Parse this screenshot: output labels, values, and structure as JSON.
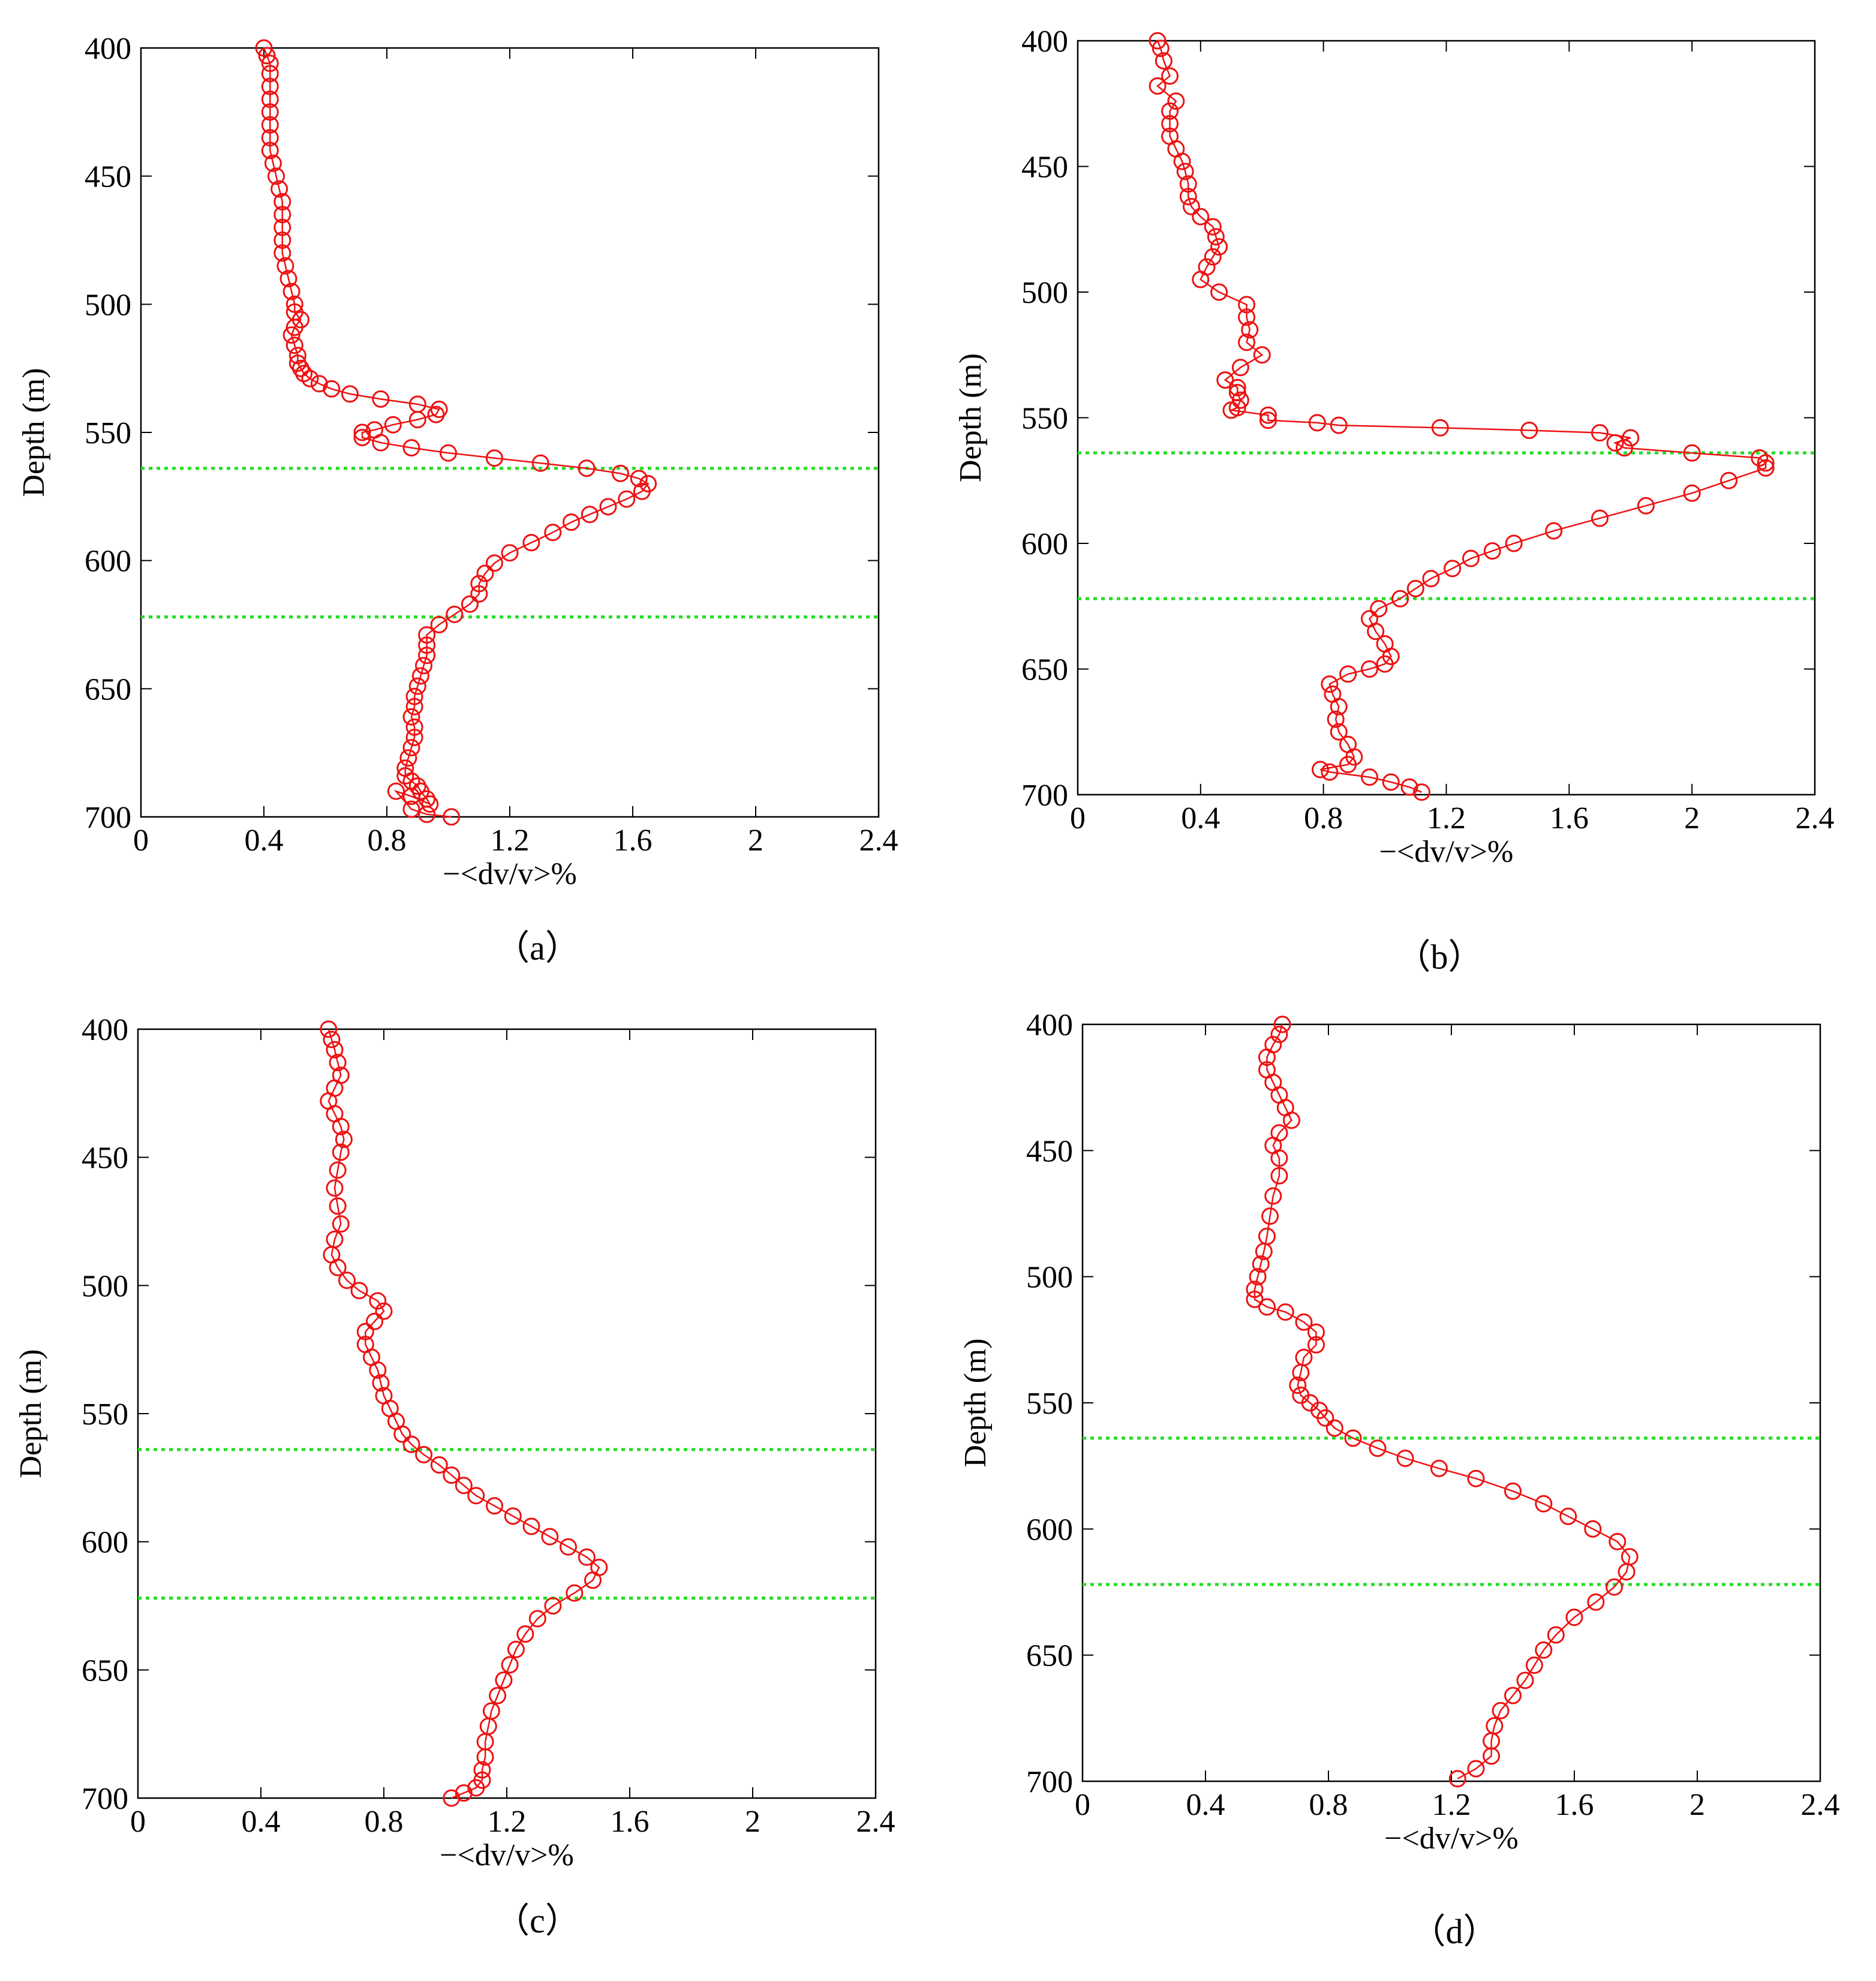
{
  "figure": {
    "panels": [
      "(a)",
      "(b)",
      "(c)",
      "(d)"
    ]
  },
  "chart_data": [
    {
      "type": "line",
      "panel_label": "（a）",
      "xlabel": "−<dv/v>%",
      "ylabel": "Depth (m)",
      "xlim": [
        0,
        2.4
      ],
      "ylim": [
        700,
        400
      ],
      "y_inverted": true,
      "xticks": [
        0,
        0.4,
        0.8,
        1.2,
        1.6,
        2,
        2.4
      ],
      "xtick_labels": [
        "0",
        "0.4",
        "0.8",
        "1.2",
        "1.6",
        "2",
        "2.4"
      ],
      "yticks": [
        400,
        450,
        500,
        550,
        600,
        650,
        700
      ],
      "ytick_labels": [
        "400",
        "450",
        "500",
        "550",
        "600",
        "650",
        "700"
      ],
      "reference_lines": [
        {
          "y": 564,
          "style": "dotted",
          "color": "#22dd22"
        },
        {
          "y": 622,
          "style": "dotted",
          "color": "#22dd22"
        }
      ],
      "series": [
        {
          "marker": "open-circle",
          "color": "#ee1111",
          "x": [
            0.4,
            0.41,
            0.42,
            0.42,
            0.42,
            0.42,
            0.42,
            0.42,
            0.42,
            0.42,
            0.43,
            0.44,
            0.45,
            0.46,
            0.46,
            0.46,
            0.46,
            0.46,
            0.47,
            0.48,
            0.49,
            0.5,
            0.5,
            0.52,
            0.5,
            0.49,
            0.5,
            0.51,
            0.51,
            0.52,
            0.53,
            0.55,
            0.58,
            0.62,
            0.68,
            0.78,
            0.9,
            0.97,
            0.96,
            0.9,
            0.82,
            0.76,
            0.72,
            0.72,
            0.78,
            0.88,
            1.0,
            1.15,
            1.3,
            1.45,
            1.56,
            1.62,
            1.65,
            1.63,
            1.58,
            1.52,
            1.46,
            1.4,
            1.34,
            1.27,
            1.2,
            1.15,
            1.12,
            1.1,
            1.1,
            1.07,
            1.02,
            0.97,
            0.93,
            0.93,
            0.93,
            0.92,
            0.91,
            0.9,
            0.89,
            0.89,
            0.88,
            0.89,
            0.89,
            0.88,
            0.87,
            0.86,
            0.86,
            0.88,
            0.9,
            0.91,
            0.93,
            0.94,
            0.88,
            0.83,
            0.88,
            0.93,
            1.01
          ],
          "y": [
            400,
            403,
            406,
            410,
            415,
            420,
            425,
            430,
            435,
            440,
            445,
            450,
            455,
            460,
            465,
            470,
            475,
            480,
            485,
            490,
            495,
            500,
            503,
            506,
            509,
            512,
            516,
            520,
            523,
            525,
            527,
            529,
            531,
            533,
            535,
            537,
            539,
            541,
            543,
            545,
            547,
            549,
            550,
            552,
            554,
            556,
            558,
            560,
            562,
            564,
            566,
            568,
            570,
            573,
            576,
            579,
            582,
            585,
            589,
            593,
            597,
            601,
            605,
            609,
            613,
            617,
            621,
            625,
            629,
            633,
            637,
            641,
            645,
            649,
            653,
            657,
            661,
            665,
            669,
            673,
            677,
            681,
            684,
            686,
            688,
            690,
            693,
            695,
            692,
            690,
            697,
            699,
            700
          ]
        }
      ]
    },
    {
      "type": "line",
      "panel_label": "（b）",
      "xlabel": "−<dv/v>%",
      "ylabel": "Depth (m)",
      "xlim": [
        0,
        2.4
      ],
      "ylim": [
        700,
        400
      ],
      "y_inverted": true,
      "xticks": [
        0,
        0.4,
        0.8,
        1.2,
        1.6,
        2,
        2.4
      ],
      "xtick_labels": [
        "0",
        "0.4",
        "0.8",
        "1.2",
        "1.6",
        "2",
        "2.4"
      ],
      "yticks": [
        400,
        450,
        500,
        550,
        600,
        650,
        700
      ],
      "ytick_labels": [
        "400",
        "450",
        "500",
        "550",
        "600",
        "650",
        "700"
      ],
      "reference_lines": [
        {
          "y": 564,
          "style": "dotted",
          "color": "#22dd22"
        },
        {
          "y": 622,
          "style": "dotted",
          "color": "#22dd22"
        }
      ],
      "series": [
        {
          "marker": "open-circle",
          "color": "#ee1111",
          "x": [
            0.26,
            0.27,
            0.28,
            0.3,
            0.26,
            0.32,
            0.3,
            0.3,
            0.3,
            0.32,
            0.34,
            0.35,
            0.36,
            0.36,
            0.37,
            0.4,
            0.44,
            0.45,
            0.46,
            0.44,
            0.42,
            0.4,
            0.46,
            0.55,
            0.55,
            0.56,
            0.55,
            0.6,
            0.53,
            0.48,
            0.52,
            0.52,
            0.53,
            0.52,
            0.5,
            0.62,
            0.62,
            0.78,
            0.85,
            1.18,
            1.47,
            1.7,
            1.8,
            1.75,
            1.78,
            2.0,
            2.22,
            2.24,
            2.24,
            2.12,
            2.0,
            1.85,
            1.7,
            1.55,
            1.42,
            1.35,
            1.28,
            1.22,
            1.15,
            1.1,
            1.05,
            0.98,
            0.95,
            0.97,
            1.0,
            1.02,
            1.0,
            0.95,
            0.88,
            0.82,
            0.83,
            0.85,
            0.84,
            0.85,
            0.88,
            0.9,
            0.88,
            0.79,
            0.82,
            0.95,
            1.02,
            1.08,
            1.12
          ],
          "y": [
            400,
            403,
            408,
            414,
            418,
            424,
            428,
            433,
            438,
            443,
            448,
            452,
            457,
            462,
            466,
            470,
            474,
            478,
            482,
            486,
            490,
            495,
            500,
            505,
            510,
            515,
            520,
            525,
            530,
            535,
            538,
            540,
            543,
            546,
            547,
            549,
            551,
            552,
            553,
            554,
            555,
            556,
            558,
            560,
            562,
            564,
            566,
            568,
            570,
            575,
            580,
            585,
            590,
            595,
            600,
            603,
            606,
            610,
            614,
            618,
            622,
            626,
            630,
            635,
            640,
            645,
            648,
            650,
            652,
            656,
            660,
            665,
            670,
            675,
            680,
            685,
            688,
            690,
            691,
            693,
            695,
            697,
            699
          ]
        }
      ]
    },
    {
      "type": "line",
      "panel_label": "（c）",
      "xlabel": "−<dv/v>%",
      "ylabel": "Depth (m)",
      "xlim": [
        0,
        2.4
      ],
      "ylim": [
        700,
        400
      ],
      "y_inverted": true,
      "xticks": [
        0,
        0.4,
        0.8,
        1.2,
        1.6,
        2,
        2.4
      ],
      "xtick_labels": [
        "0",
        "0.4",
        "0.8",
        "1.2",
        "1.6",
        "2",
        "2.4"
      ],
      "yticks": [
        400,
        450,
        500,
        550,
        600,
        650,
        700
      ],
      "ytick_labels": [
        "400",
        "450",
        "500",
        "550",
        "600",
        "650",
        "700"
      ],
      "reference_lines": [
        {
          "y": 564,
          "style": "dotted",
          "color": "#22dd22"
        },
        {
          "y": 622,
          "style": "dotted",
          "color": "#22dd22"
        }
      ],
      "series": [
        {
          "marker": "open-circle",
          "color": "#ee1111",
          "x": [
            0.62,
            0.63,
            0.64,
            0.65,
            0.66,
            0.64,
            0.62,
            0.64,
            0.66,
            0.67,
            0.66,
            0.65,
            0.64,
            0.65,
            0.66,
            0.64,
            0.63,
            0.65,
            0.68,
            0.72,
            0.78,
            0.8,
            0.77,
            0.74,
            0.74,
            0.76,
            0.78,
            0.79,
            0.8,
            0.82,
            0.84,
            0.86,
            0.89,
            0.93,
            0.98,
            1.02,
            1.06,
            1.1,
            1.16,
            1.22,
            1.28,
            1.34,
            1.4,
            1.46,
            1.5,
            1.48,
            1.42,
            1.35,
            1.3,
            1.26,
            1.23,
            1.21,
            1.19,
            1.17,
            1.15,
            1.14,
            1.13,
            1.13,
            1.12,
            1.12,
            1.1,
            1.06,
            1.02
          ],
          "y": [
            400,
            404,
            408,
            413,
            418,
            423,
            428,
            433,
            438,
            443,
            448,
            455,
            462,
            469,
            476,
            482,
            488,
            493,
            498,
            502,
            506,
            510,
            514,
            518,
            523,
            528,
            533,
            538,
            543,
            548,
            553,
            558,
            562,
            566,
            570,
            574,
            578,
            582,
            586,
            590,
            594,
            598,
            602,
            606,
            610,
            615,
            620,
            625,
            630,
            636,
            642,
            648,
            654,
            660,
            666,
            672,
            678,
            684,
            689,
            693,
            696,
            698,
            700
          ]
        }
      ]
    },
    {
      "type": "line",
      "panel_label": "（d）",
      "xlabel": "−<dv/v>%",
      "ylabel": "Depth (m)",
      "xlim": [
        0,
        2.4
      ],
      "ylim": [
        700,
        400
      ],
      "y_inverted": true,
      "xticks": [
        0,
        0.4,
        0.8,
        1.2,
        1.6,
        2,
        2.4
      ],
      "xtick_labels": [
        "0",
        "0.4",
        "0.8",
        "1.2",
        "1.6",
        "2",
        "2.4"
      ],
      "yticks": [
        400,
        450,
        500,
        550,
        600,
        650,
        700
      ],
      "ytick_labels": [
        "400",
        "450",
        "500",
        "550",
        "600",
        "650",
        "700"
      ],
      "reference_lines": [
        {
          "y": 564,
          "style": "dotted",
          "color": "#22dd22"
        },
        {
          "y": 622,
          "style": "dotted",
          "color": "#22dd22"
        }
      ],
      "series": [
        {
          "marker": "open-circle",
          "color": "#ee1111",
          "x": [
            0.65,
            0.64,
            0.62,
            0.6,
            0.6,
            0.62,
            0.64,
            0.66,
            0.68,
            0.64,
            0.62,
            0.64,
            0.64,
            0.62,
            0.61,
            0.6,
            0.59,
            0.58,
            0.57,
            0.56,
            0.56,
            0.6,
            0.66,
            0.72,
            0.76,
            0.76,
            0.72,
            0.71,
            0.7,
            0.71,
            0.74,
            0.77,
            0.79,
            0.82,
            0.88,
            0.96,
            1.05,
            1.16,
            1.28,
            1.4,
            1.5,
            1.58,
            1.66,
            1.74,
            1.78,
            1.77,
            1.73,
            1.67,
            1.6,
            1.54,
            1.5,
            1.47,
            1.44,
            1.4,
            1.36,
            1.34,
            1.33,
            1.33,
            1.28,
            1.22
          ],
          "y": [
            400,
            404,
            408,
            413,
            418,
            423,
            428,
            433,
            438,
            443,
            448,
            453,
            460,
            468,
            476,
            484,
            490,
            495,
            500,
            505,
            509,
            512,
            514,
            518,
            522,
            527,
            532,
            538,
            543,
            547,
            550,
            553,
            556,
            560,
            564,
            568,
            572,
            576,
            580,
            585,
            590,
            595,
            600,
            605,
            611,
            617,
            623,
            629,
            635,
            642,
            648,
            654,
            660,
            666,
            672,
            678,
            684,
            690,
            695,
            699
          ]
        }
      ]
    }
  ]
}
